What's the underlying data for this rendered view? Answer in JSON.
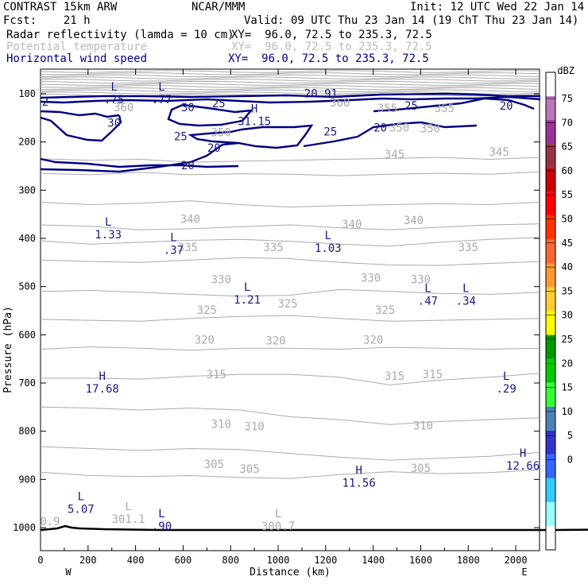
{
  "header": {
    "line1_left": "CONTRAST 15km ARW",
    "line1_center": "NCAR/MMM",
    "line1_right": "Init: 12 UTC Wed 22 Jan 14",
    "line2_left": "Fcst:    21 h",
    "line2_right": "Valid: 09 UTC Thu 23 Jan 14 (19 ChT Thu 23 Jan 14)",
    "field1": "Radar reflectivity (lamda = 10 cm)",
    "field1_xy": "XY=  96.0, 72.5 to 235.3, 72.5",
    "field2": "Potential temperature",
    "field2_xy": "XY=  96.0, 72.5 to 235.3, 72.5",
    "field3": "Horizontal wind speed",
    "field3_xy": "XY=  96.0, 72.5 to 235.3, 72.5"
  },
  "colors": {
    "theta": "#aaaaaa",
    "wind": "#000080",
    "wind_label": "#1a1a80",
    "terrain": "#000000"
  },
  "chart_data": {
    "type": "cross-section",
    "xlabel": "Distance (km)",
    "ylabel": "Pressure (hPa)",
    "xlim": [
      0,
      2100
    ],
    "ylim": [
      1050,
      60
    ],
    "x_ticks": [
      "0",
      "200",
      "400",
      "600",
      "800",
      "1000",
      "1200",
      "1400",
      "1600",
      "1800",
      "2000"
    ],
    "y_ticks": [
      "100",
      "200",
      "300",
      "400",
      "500",
      "600",
      "700",
      "800",
      "900",
      "1000"
    ],
    "left_endpoint": "W",
    "right_endpoint": "E",
    "colorbar": {
      "unit": "dBZ",
      "levels": [
        "0",
        "5",
        "10",
        "15",
        "20",
        "25",
        "30",
        "35",
        "40",
        "45",
        "50",
        "55",
        "60",
        "65",
        "70",
        "75"
      ],
      "colors": [
        "#ffffff",
        "#99ffff",
        "#33ccff",
        "#3366ff",
        "#3333cc",
        "#4b82b5",
        "#33ff33",
        "#00cc00",
        "#009900",
        "#ffff00",
        "#ffcc33",
        "#ff9933",
        "#ff6633",
        "#ff3300",
        "#ff0000",
        "#cc0000",
        "#993344",
        "#993399",
        "#bb77bb",
        "#ffffff"
      ]
    },
    "theta_labels": [
      {
        "text": "360",
        "x": 350,
        "p": 128
      },
      {
        "text": "360",
        "x": 1260,
        "p": 118
      },
      {
        "text": "355",
        "x": 1460,
        "p": 130
      },
      {
        "text": "355",
        "x": 1700,
        "p": 130
      },
      {
        "text": "350",
        "x": 760,
        "p": 180
      },
      {
        "text": "350",
        "x": 1510,
        "p": 170
      },
      {
        "text": "350",
        "x": 1640,
        "p": 172
      },
      {
        "text": "345",
        "x": 1490,
        "p": 225
      },
      {
        "text": "345",
        "x": 1930,
        "p": 220
      },
      {
        "text": "340",
        "x": 630,
        "p": 360
      },
      {
        "text": "340",
        "x": 1310,
        "p": 370
      },
      {
        "text": "340",
        "x": 1570,
        "p": 362
      },
      {
        "text": "335",
        "x": 620,
        "p": 418
      },
      {
        "text": "335",
        "x": 980,
        "p": 418
      },
      {
        "text": "335",
        "x": 1800,
        "p": 418
      },
      {
        "text": "330",
        "x": 760,
        "p": 485
      },
      {
        "text": "330",
        "x": 1390,
        "p": 482
      },
      {
        "text": "330",
        "x": 1600,
        "p": 485
      },
      {
        "text": "325",
        "x": 700,
        "p": 548
      },
      {
        "text": "325",
        "x": 1040,
        "p": 535
      },
      {
        "text": "325",
        "x": 1450,
        "p": 548
      },
      {
        "text": "320",
        "x": 690,
        "p": 610
      },
      {
        "text": "320",
        "x": 990,
        "p": 612
      },
      {
        "text": "320",
        "x": 1400,
        "p": 610
      },
      {
        "text": "315",
        "x": 740,
        "p": 682
      },
      {
        "text": "315",
        "x": 1490,
        "p": 685
      },
      {
        "text": "315",
        "x": 1650,
        "p": 682
      },
      {
        "text": "310",
        "x": 760,
        "p": 785
      },
      {
        "text": "310",
        "x": 900,
        "p": 790
      },
      {
        "text": "310",
        "x": 1610,
        "p": 788
      },
      {
        "text": "305",
        "x": 730,
        "p": 868
      },
      {
        "text": "305",
        "x": 880,
        "p": 878
      },
      {
        "text": "305",
        "x": 1600,
        "p": 876
      }
    ],
    "wind_labels": [
      {
        "text": "25",
        "x": 750,
        "p": 120
      },
      {
        "text": "30",
        "x": 620,
        "p": 128
      },
      {
        "text": "30",
        "x": 310,
        "p": 160
      },
      {
        "text": "25",
        "x": 590,
        "p": 188
      },
      {
        "text": "20",
        "x": 730,
        "p": 212
      },
      {
        "text": "25",
        "x": 1220,
        "p": 178
      },
      {
        "text": "20",
        "x": 1430,
        "p": 170
      },
      {
        "text": "25",
        "x": 1560,
        "p": 125
      },
      {
        "text": "20",
        "x": 1960,
        "p": 125
      },
      {
        "text": "20",
        "x": 620,
        "p": 248
      }
    ],
    "extrema": [
      {
        "kind": "L",
        "value": ".75",
        "x": 310,
        "p": 100,
        "style": "wind"
      },
      {
        "kind": "L",
        "value": ".77",
        "x": 510,
        "p": 100,
        "style": "wind"
      },
      {
        "kind": "",
        "value": "20.91",
        "x": 1180,
        "p": 88,
        "style": "wind"
      },
      {
        "kind": "",
        "value": "2",
        "x": 20,
        "p": 105,
        "style": "wind"
      },
      {
        "kind": "H",
        "value": "31.15",
        "x": 900,
        "p": 145,
        "style": "wind"
      },
      {
        "kind": "L",
        "value": "1.33",
        "x": 285,
        "p": 380,
        "style": "wind"
      },
      {
        "kind": "L",
        "value": ".37",
        "x": 560,
        "p": 412,
        "style": "wind"
      },
      {
        "kind": "L",
        "value": "1.03",
        "x": 1210,
        "p": 408,
        "style": "wind"
      },
      {
        "kind": "L",
        "value": "1.21",
        "x": 870,
        "p": 515,
        "style": "wind"
      },
      {
        "kind": "L",
        "value": ".47",
        "x": 1630,
        "p": 518,
        "style": "wind"
      },
      {
        "kind": "L",
        "value": ".34",
        "x": 1790,
        "p": 518,
        "style": "wind"
      },
      {
        "kind": "H",
        "value": "17.68",
        "x": 260,
        "p": 700,
        "style": "wind"
      },
      {
        "kind": "L",
        "value": ".29",
        "x": 1960,
        "p": 700,
        "style": "wind"
      },
      {
        "kind": "L",
        "value": "5.07",
        "x": 170,
        "p": 950,
        "style": "wind"
      },
      {
        "kind": "L",
        "value": ".90",
        "x": 510,
        "p": 985,
        "style": "wind"
      },
      {
        "kind": "H",
        "value": "11.56",
        "x": 1340,
        "p": 895,
        "style": "wind"
      },
      {
        "kind": "H",
        "value": "12.66",
        "x": 2030,
        "p": 860,
        "style": "wind"
      },
      {
        "kind": "",
        "value": "0.9",
        "x": 40,
        "p": 975,
        "style": "theta"
      },
      {
        "kind": "L",
        "value": "301.1",
        "x": 370,
        "p": 970,
        "style": "theta"
      },
      {
        "kind": "L",
        "value": "300.7",
        "x": 1000,
        "p": 985,
        "style": "theta"
      }
    ]
  }
}
